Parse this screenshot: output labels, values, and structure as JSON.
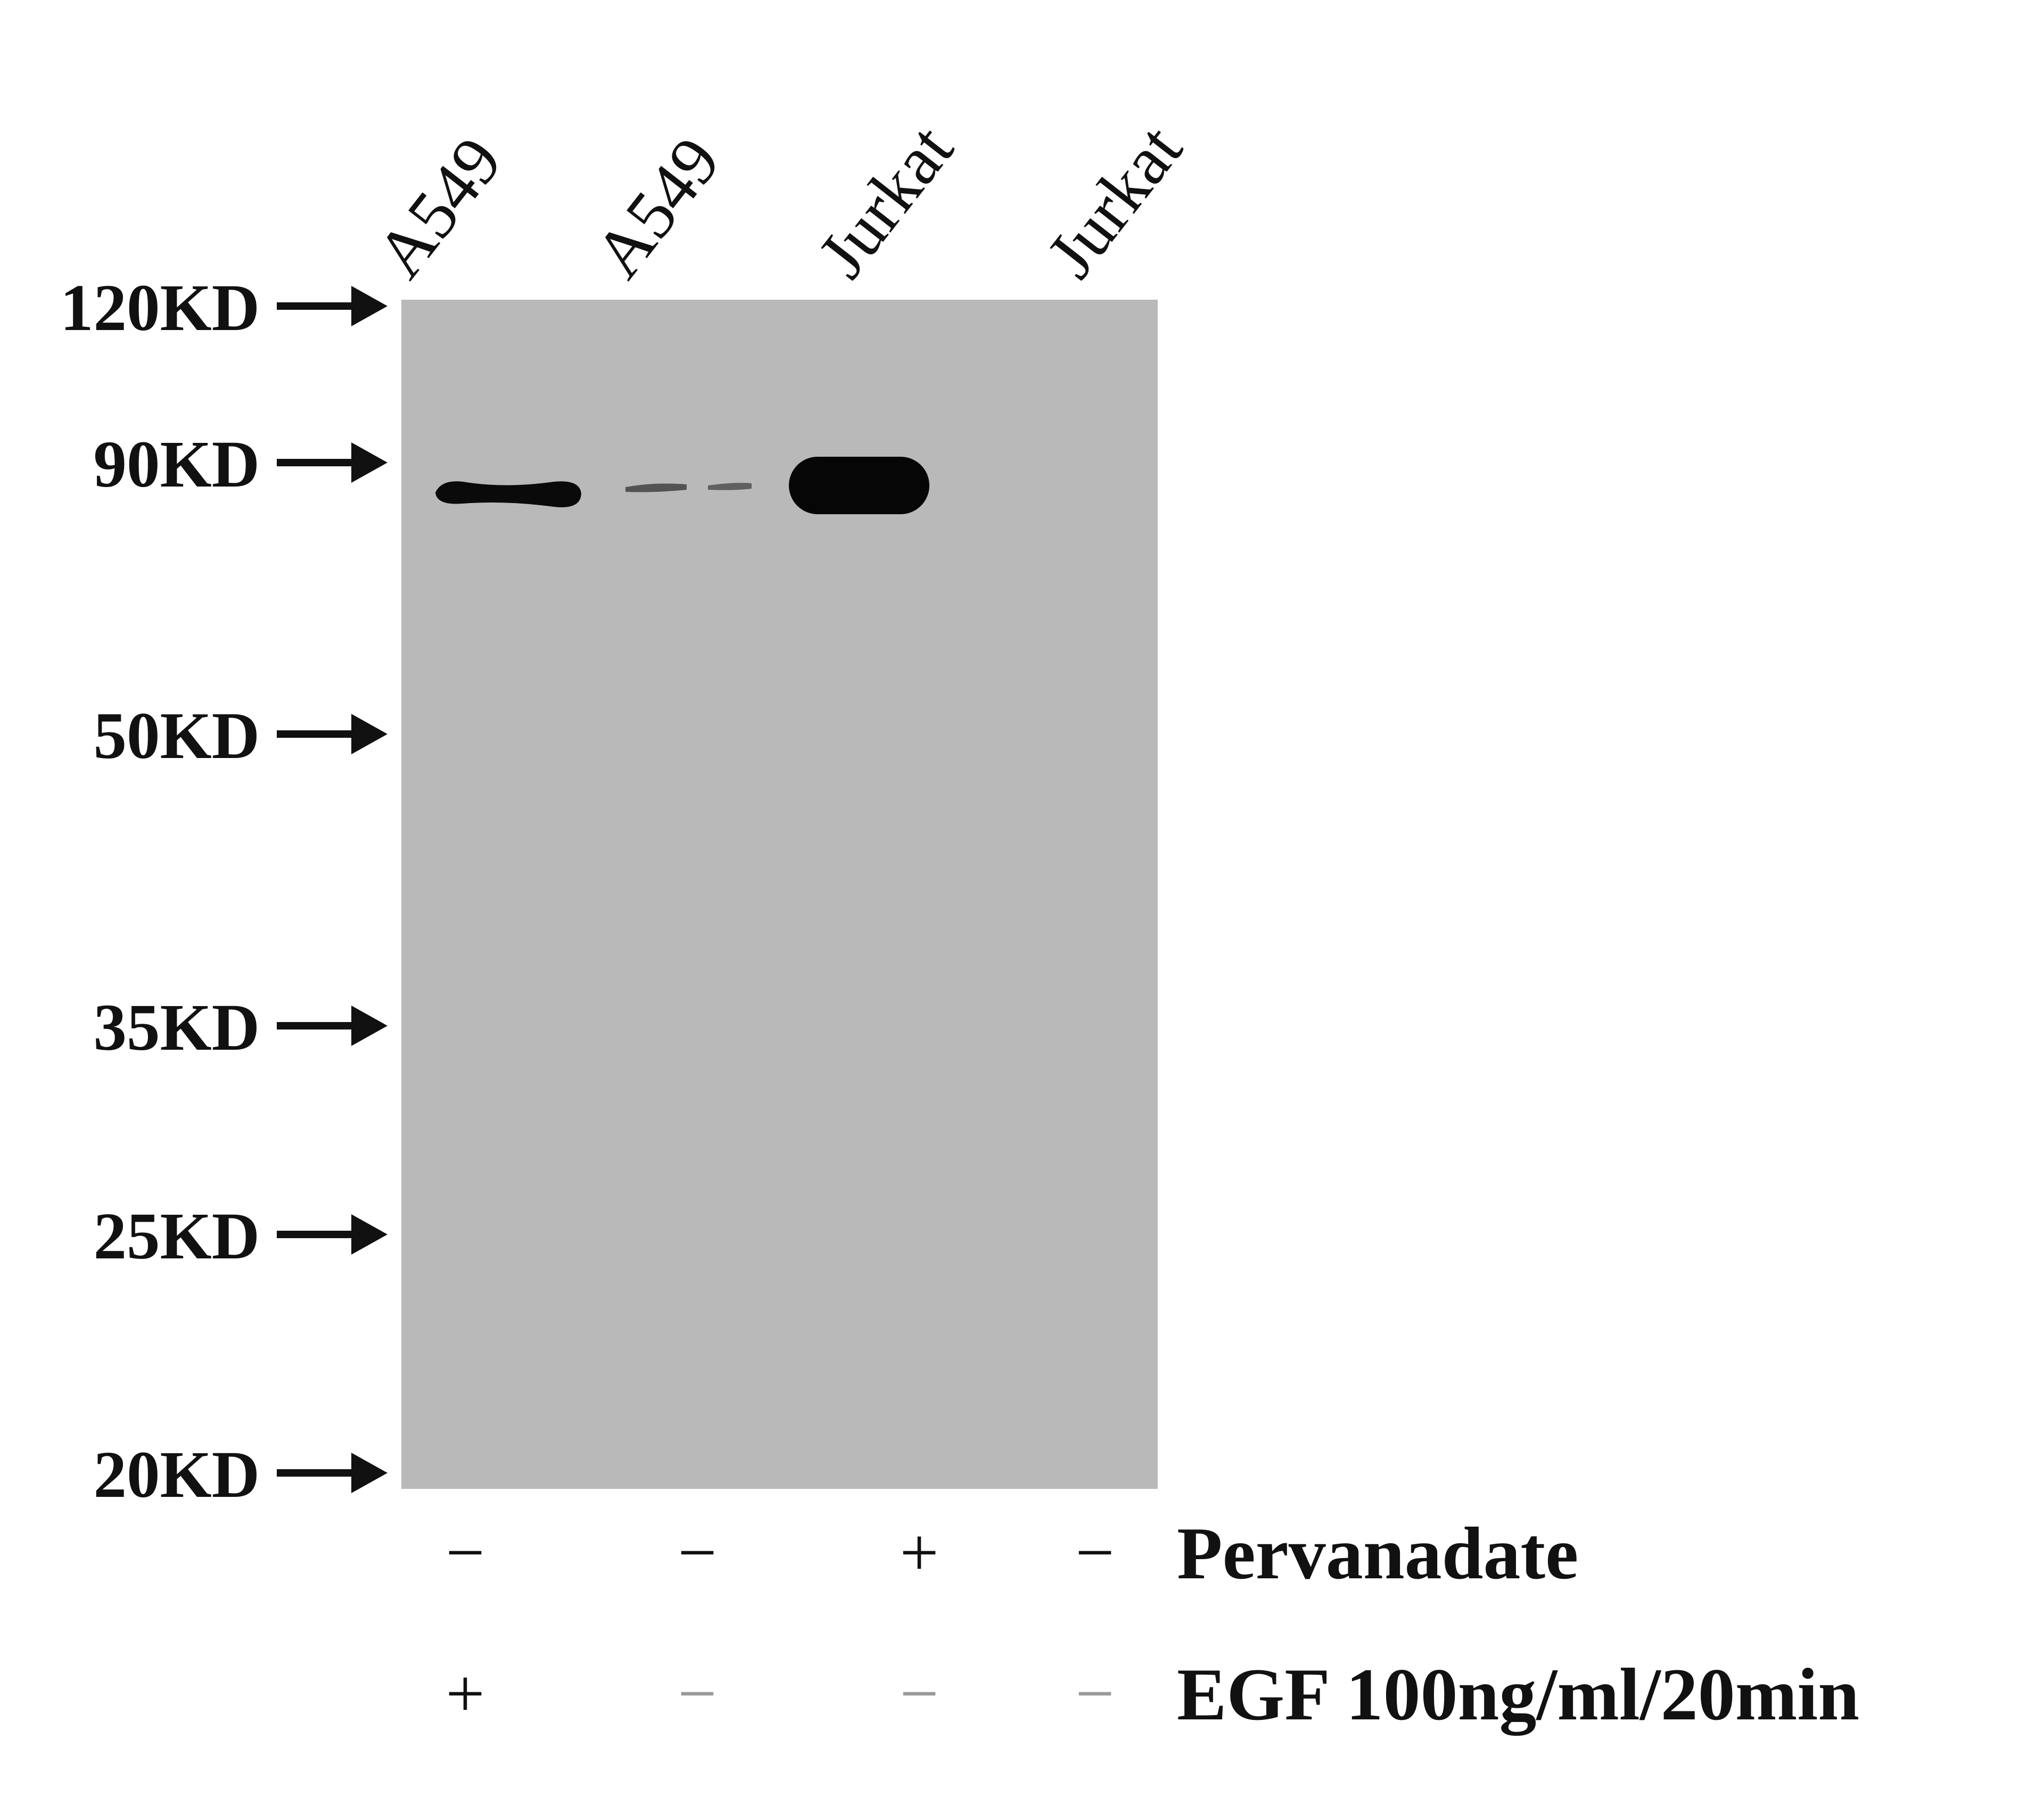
{
  "lanes": [
    "A549",
    "A549",
    "Jurkat",
    "Jurkat"
  ],
  "markers": [
    "120KD",
    "90KD",
    "50KD",
    "35KD",
    "25KD",
    "20KD"
  ],
  "treatments": [
    {
      "label": "Pervanadate",
      "signs": [
        "−",
        "−",
        "+",
        "−"
      ]
    },
    {
      "label": "EGF 100ng/ml/20min",
      "signs": [
        "+",
        "−",
        "−",
        "−"
      ]
    }
  ],
  "bands": [
    {
      "lane": 1,
      "intensity": "strong"
    },
    {
      "lane": 2,
      "intensity": "faint"
    },
    {
      "lane": 3,
      "intensity": "very strong"
    }
  ],
  "colors": {
    "membrane": "#b9b9b9",
    "band": "#0a0a0a"
  }
}
